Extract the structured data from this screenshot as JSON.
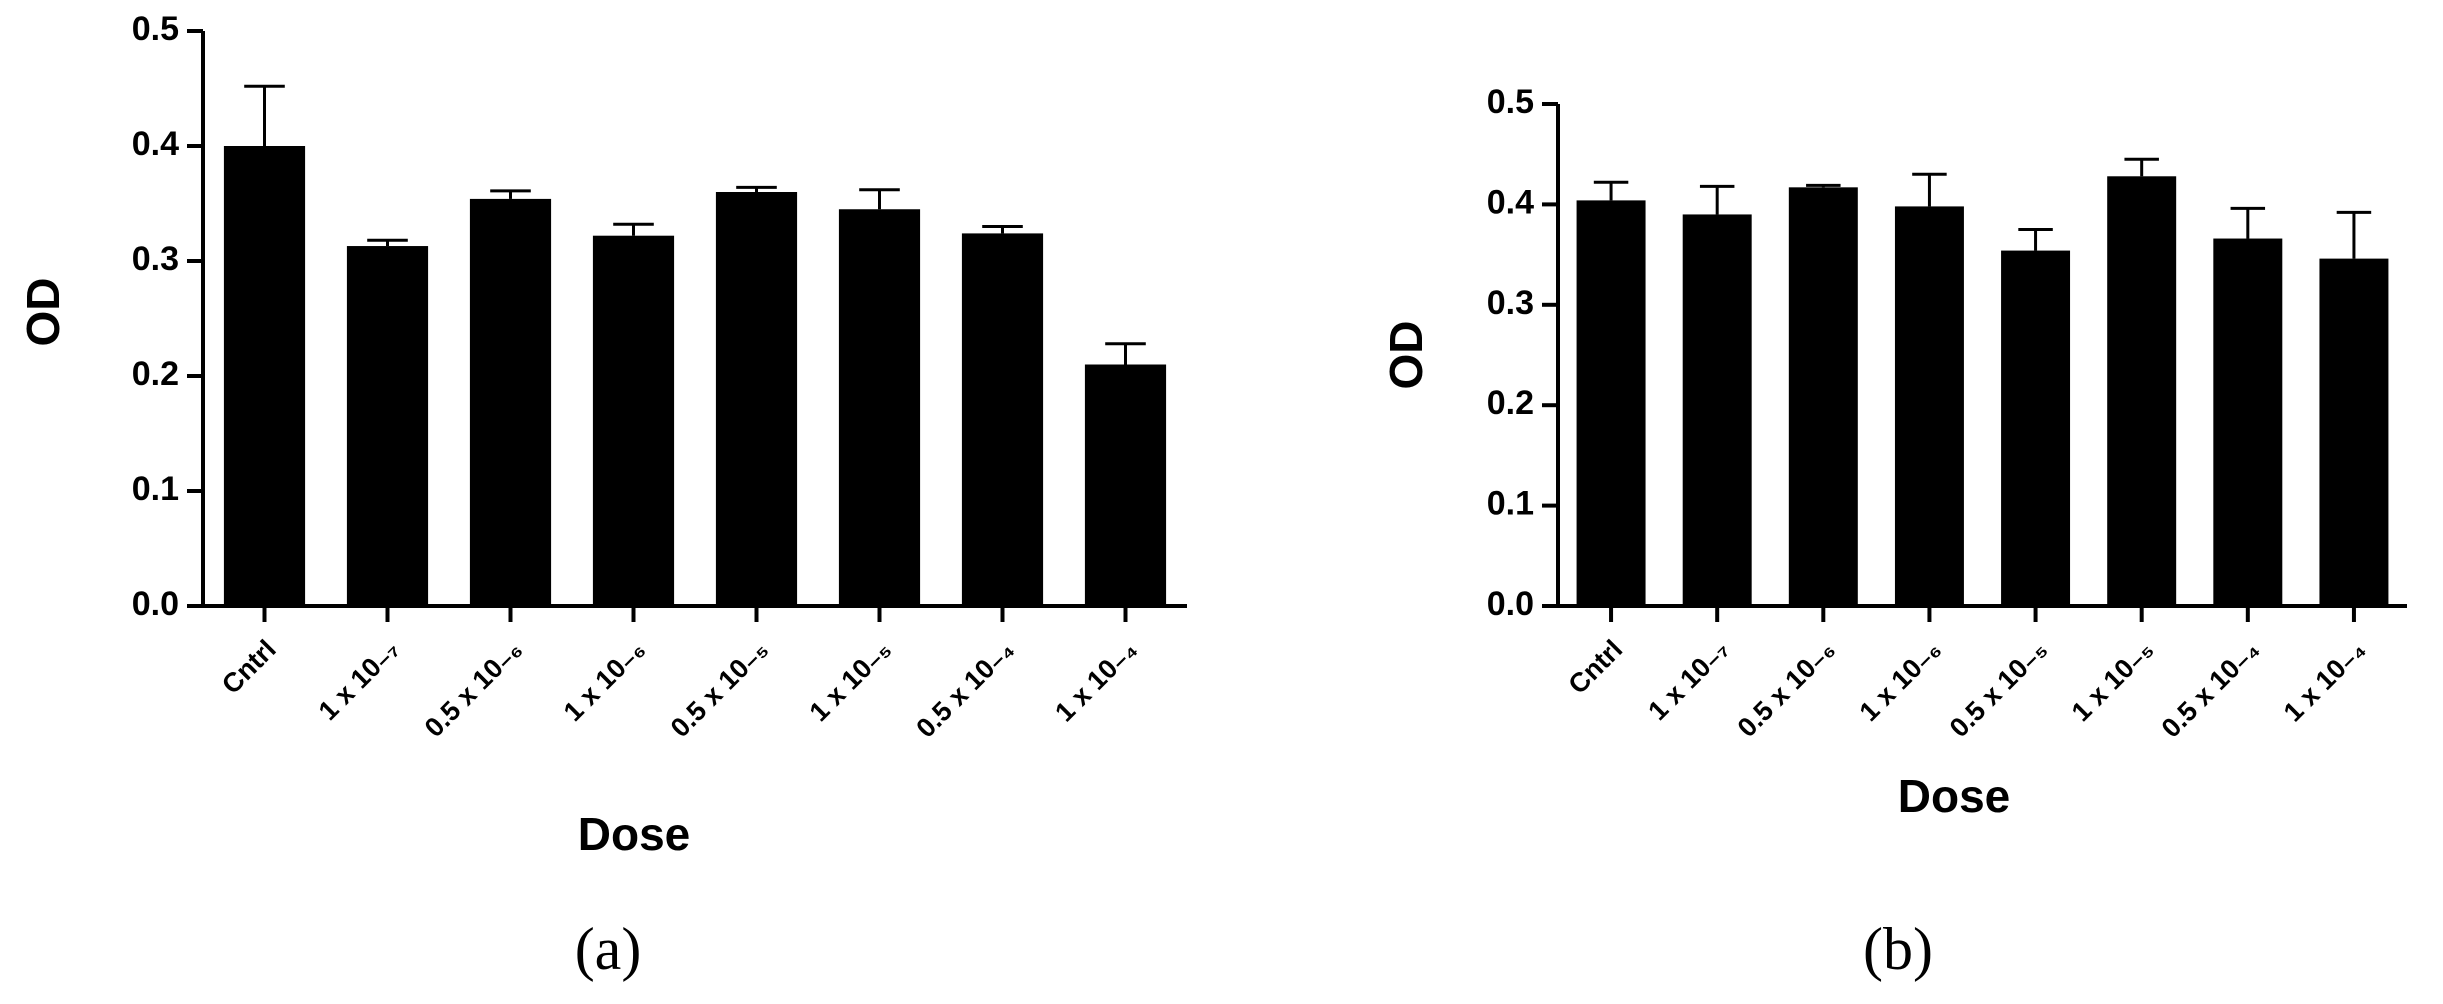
{
  "chart_data": [
    {
      "type": "bar",
      "caption": "(a)",
      "x_label": "Dose",
      "y_label": "OD",
      "categories": [
        "Cntrl",
        "1 x 10₋₇",
        "0.5 x 10₋₆",
        "1 x 10₋₆",
        "0.5 x 10₋₅",
        "1 x 10₋₅",
        "0.5 x 10₋₄",
        "1 x 10₋₄"
      ],
      "values": [
        0.4,
        0.313,
        0.354,
        0.322,
        0.36,
        0.345,
        0.324,
        0.21
      ],
      "errors": [
        0.052,
        0.005,
        0.007,
        0.01,
        0.004,
        0.017,
        0.006,
        0.018
      ],
      "color": "#000000",
      "ylim": [
        0,
        0.5
      ],
      "yticks": [
        {
          "value": 0,
          "label": "0.0"
        },
        0.1,
        0.2,
        0.3,
        0.4,
        0.5
      ]
    },
    {
      "type": "bar",
      "caption": "(b)",
      "x_label": "Dose",
      "y_label": "OD",
      "categories": [
        "Cntrl",
        "1 x 10₋₇",
        "0.5 x 10₋₆",
        "1 x 10₋₆",
        "0.5 x 10₋₅",
        "1 x 10₋₅",
        "0.5 x 10₋₄",
        "1 x 10₋₄"
      ],
      "values": [
        0.404,
        0.39,
        0.417,
        0.398,
        0.354,
        0.428,
        0.366,
        0.346
      ],
      "errors": [
        0.018,
        0.028,
        0.002,
        0.032,
        0.021,
        0.017,
        0.03,
        0.046
      ],
      "color": "#000000",
      "ylim": [
        0,
        0.5
      ],
      "yticks": [
        {
          "value": 0,
          "label": "0.0"
        },
        0.1,
        0.2,
        0.3,
        0.4,
        0.5
      ]
    }
  ]
}
